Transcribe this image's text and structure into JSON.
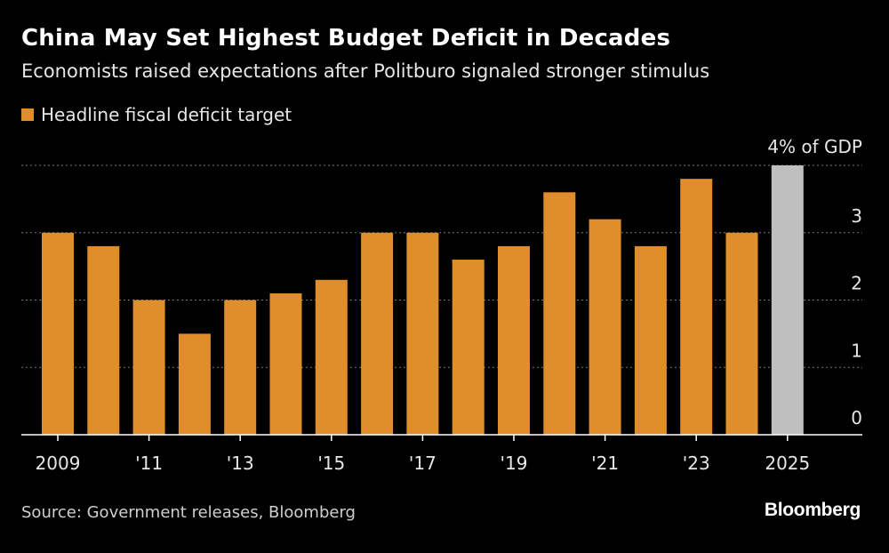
{
  "header": {
    "title": "China May Set Highest Budget Deficit in Decades",
    "subtitle": "Economists raised expectations after Politburo signaled stronger stimulus"
  },
  "legend": {
    "label": "Headline fiscal deficit target"
  },
  "footer": {
    "source": "Source: Government releases, Bloomberg",
    "brand": "Bloomberg"
  },
  "colors": {
    "bar": "#E08E2B",
    "highlight_bar": "#BFBFBF",
    "grid": "#777777",
    "axis": "#ffffff",
    "background": "#000000"
  },
  "chart_data": {
    "type": "bar",
    "title": "China May Set Highest Budget Deficit in Decades",
    "ylabel": "% of GDP",
    "ylim": [
      0,
      4
    ],
    "yticks": [
      {
        "value": 0,
        "label": "0"
      },
      {
        "value": 1,
        "label": "1"
      },
      {
        "value": 2,
        "label": "2"
      },
      {
        "value": 3,
        "label": "3"
      },
      {
        "value": 4,
        "label": "4% of GDP"
      }
    ],
    "categories": [
      "2009",
      "2010",
      "2011",
      "2012",
      "2013",
      "2014",
      "2015",
      "2016",
      "2017",
      "2018",
      "2019",
      "2020",
      "2021",
      "2022",
      "2023",
      "2024",
      "2025"
    ],
    "xtick_labels": [
      {
        "category": "2009",
        "label": "2009"
      },
      {
        "category": "2011",
        "label": "'11"
      },
      {
        "category": "2013",
        "label": "'13"
      },
      {
        "category": "2015",
        "label": "'15"
      },
      {
        "category": "2017",
        "label": "'17"
      },
      {
        "category": "2019",
        "label": "'19"
      },
      {
        "category": "2021",
        "label": "'21"
      },
      {
        "category": "2023",
        "label": "'23"
      },
      {
        "category": "2025",
        "label": "2025"
      }
    ],
    "series": [
      {
        "name": "Headline fiscal deficit target",
        "values": [
          3.0,
          2.8,
          2.0,
          1.5,
          2.0,
          2.1,
          2.3,
          3.0,
          3.0,
          2.6,
          2.8,
          3.6,
          3.2,
          2.8,
          3.8,
          3.0,
          4.0
        ]
      }
    ],
    "highlighted_category": "2025",
    "grid": true,
    "legend_position": "top-left"
  }
}
